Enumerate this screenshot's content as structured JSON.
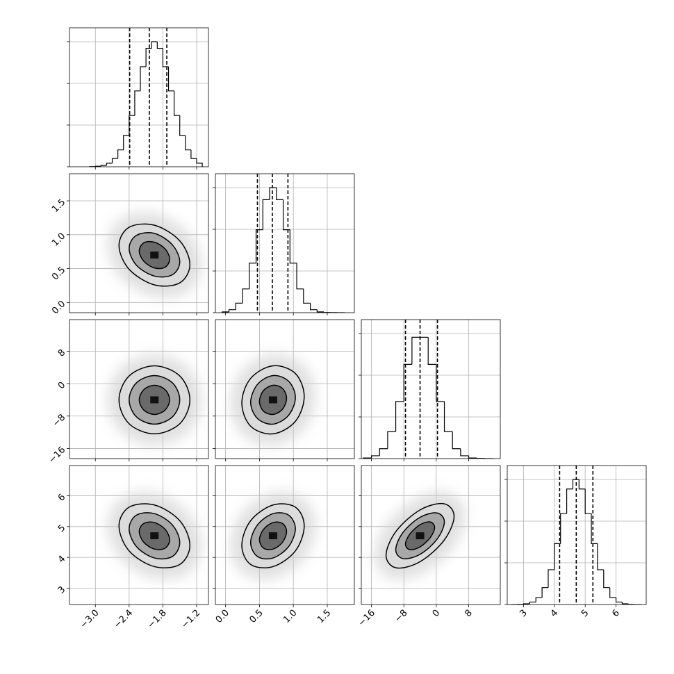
{
  "chart_data": {
    "type": "corner",
    "grid": true,
    "color": "#000000",
    "axes": [
      {
        "lim": [
          -3.46,
          -0.99
        ],
        "ticks": [
          {
            "value": -3.0,
            "label": "−3.0"
          },
          {
            "value": -2.4,
            "label": "−2.4"
          },
          {
            "value": -1.8,
            "label": "−1.8"
          },
          {
            "value": -1.2,
            "label": "−1.2"
          }
        ]
      },
      {
        "lim": [
          -0.15,
          1.9
        ],
        "ticks": [
          {
            "value": 0.0,
            "label": "0.0"
          },
          0.5,
          {
            "value": 1.0,
            "label": "1.0"
          },
          1.5
        ]
      },
      {
        "lim": [
          -18.5,
          15.8
        ],
        "ticks": [
          {
            "value": -16,
            "label": "−16"
          },
          {
            "value": -8,
            "label": "−8"
          },
          0,
          8
        ]
      },
      {
        "lim": [
          2.47,
          6.98
        ],
        "ticks": [
          3,
          4,
          5,
          6
        ]
      }
    ],
    "histograms": [
      {
        "bins": [
          -3.1,
          -3.0,
          -2.9,
          -2.8,
          -2.7,
          -2.6,
          -2.5,
          -2.4,
          -2.3,
          -2.2,
          -2.1,
          -2.0,
          -1.9,
          -1.8,
          -1.7,
          -1.6,
          -1.5,
          -1.4,
          -1.3,
          -1.2,
          -1.1
        ],
        "values": [
          4,
          12,
          33,
          85,
          198,
          405,
          750,
          1230,
          1820,
          2400,
          2840,
          3000,
          2840,
          2400,
          1820,
          1230,
          750,
          405,
          198,
          85
        ],
        "quantiles": [
          -2.39,
          -2.04,
          -1.73
        ],
        "ylim": [
          0,
          3333
        ],
        "yticks": [
          0,
          1000,
          2000,
          3000
        ]
      },
      {
        "bins": [
          -0.05,
          0.05,
          0.15,
          0.25,
          0.35,
          0.45,
          0.55,
          0.65,
          0.75,
          0.85,
          0.95,
          1.05,
          1.15,
          1.25,
          1.35,
          1.45,
          1.55,
          1.65,
          1.75
        ],
        "values": [
          19,
          72,
          228,
          570,
          1190,
          1990,
          2710,
          3000,
          2710,
          1990,
          1190,
          570,
          228,
          72,
          19,
          5,
          2,
          1
        ],
        "quantiles": [
          0.47,
          0.69,
          0.92
        ],
        "ylim": [
          0,
          3333
        ],
        "yticks": [
          0,
          1000,
          2000,
          3000
        ]
      },
      {
        "bins": [
          -18,
          -16,
          -14,
          -12,
          -10,
          -8,
          -6,
          -4,
          -2,
          0,
          2,
          4,
          6,
          8,
          10,
          12,
          14
        ],
        "values": [
          15,
          68,
          238,
          648,
          1370,
          2260,
          2910,
          2910,
          2260,
          1370,
          648,
          238,
          68,
          15,
          5,
          1
        ],
        "quantiles": [
          -7.6,
          -4.0,
          0.3
        ],
        "ylim": [
          0,
          3333
        ],
        "yticks": [
          0,
          1000,
          2000,
          3000
        ]
      },
      {
        "bins": [
          2.6,
          2.8,
          3.0,
          3.2,
          3.4,
          3.6,
          3.8,
          4.0,
          4.2,
          4.4,
          4.6,
          4.8,
          5.0,
          5.2,
          5.4,
          5.6,
          5.8,
          6.0,
          6.2,
          6.4,
          6.6,
          6.8
        ],
        "values": [
          1,
          5,
          18,
          59,
          168,
          405,
          834,
          1460,
          2180,
          2770,
          3000,
          2770,
          2180,
          1460,
          834,
          405,
          168,
          59,
          18,
          5,
          1
        ],
        "quantiles": [
          4.17,
          4.71,
          5.25
        ],
        "ylim": [
          0,
          3333
        ],
        "yticks": [
          0,
          1000,
          2000,
          3000
        ]
      }
    ],
    "panels": [
      [
        {
          "contours": [
            {
              "x": [
                -1.32,
                -1.5,
                -1.95,
                -2.4,
                -2.58,
                -2.4,
                -1.95,
                -1.5
              ],
              "y": [
                0.56,
                0.91,
                1.14,
                1.11,
                0.84,
                0.49,
                0.26,
                0.29
              ]
            },
            {
              "x": [
                -1.5,
                -1.63,
                -1.95,
                -2.27,
                -2.4,
                -2.27,
                -1.95,
                -1.63
              ],
              "y": [
                0.6,
                0.85,
                1.02,
                0.99,
                0.8,
                0.55,
                0.39,
                0.41
              ]
            },
            {
              "x": [
                -1.68,
                -1.76,
                -1.95,
                -2.14,
                -2.22,
                -2.14,
                -1.95,
                -1.76
              ],
              "y": [
                0.64,
                0.79,
                0.89,
                0.88,
                0.76,
                0.61,
                0.51,
                0.52
              ]
            }
          ]
        }
      ],
      [
        {
          "contours": [
            {
              "x": [
                -1.32,
                -1.5,
                -1.95,
                -2.4,
                -2.58,
                -2.4,
                -1.95,
                -1.5
              ],
              "y": [
                -4,
                1.9,
                4.4,
                1.9,
                -4,
                -9.9,
                -12.4,
                -9.9
              ]
            },
            {
              "x": [
                -1.5,
                -1.63,
                -1.95,
                -2.27,
                -2.4,
                -2.27,
                -1.95,
                -1.63
              ],
              "y": [
                -4,
                0.2,
                2,
                0.2,
                -4,
                -8.2,
                -10,
                -8.2
              ]
            },
            {
              "x": [
                -1.68,
                -1.76,
                -1.95,
                -2.14,
                -2.22,
                -2.14,
                -1.95,
                -1.76
              ],
              "y": [
                -4,
                -1.5,
                -0.4,
                -1.5,
                -4,
                -6.5,
                -7.6,
                -6.5
              ]
            }
          ]
        },
        {
          "contours": [
            {
              "x": [
                1.16,
                1.03,
                0.7,
                0.37,
                0.24,
                0.37,
                0.7,
                1.03
              ],
              "y": [
                -3.2,
                2.5,
                4.4,
                1.3,
                -4.8,
                -10.5,
                -12.4,
                -9.3
              ]
            },
            {
              "x": [
                1.03,
                0.93,
                0.7,
                0.47,
                0.37,
                0.47,
                0.7,
                0.93
              ],
              "y": [
                -3.4,
                0.6,
                2.0,
                -0.2,
                -4.6,
                -8.6,
                -10.0,
                -7.8
              ]
            },
            {
              "x": [
                0.9,
                0.84,
                0.7,
                0.56,
                0.5,
                0.56,
                0.7,
                0.84
              ],
              "y": [
                -3.6,
                -1.2,
                -0.4,
                -1.7,
                -4.4,
                -6.8,
                -7.6,
                -6.3
              ]
            }
          ]
        }
      ],
      [
        {
          "contours": [
            {
              "x": [
                -1.32,
                -1.5,
                -1.95,
                -2.4,
                -2.58,
                -2.4,
                -1.95,
                -1.5
              ],
              "y": [
                4.39,
                5.19,
                5.7,
                5.63,
                5.02,
                4.21,
                3.7,
                3.77
              ]
            },
            {
              "x": [
                -1.5,
                -1.63,
                -1.95,
                -2.27,
                -2.4,
                -2.27,
                -1.95,
                -1.63
              ],
              "y": [
                4.48,
                5.05,
                5.42,
                5.37,
                4.93,
                4.35,
                3.98,
                4.03
              ]
            },
            {
              "x": [
                -1.68,
                -1.76,
                -1.95,
                -2.14,
                -2.22,
                -2.14,
                -1.95,
                -1.76
              ],
              "y": [
                4.57,
                4.91,
                5.13,
                5.1,
                4.84,
                4.49,
                4.27,
                4.3
              ]
            }
          ]
        },
        {
          "contours": [
            {
              "x": [
                1.16,
                1.03,
                0.7,
                0.37,
                0.24,
                0.37,
                0.7,
                1.03
              ],
              "y": [
                5.02,
                5.63,
                5.7,
                5.19,
                4.39,
                3.77,
                3.7,
                4.21
              ]
            },
            {
              "x": [
                1.03,
                0.93,
                0.7,
                0.47,
                0.37,
                0.47,
                0.7,
                0.93
              ],
              "y": [
                4.93,
                5.37,
                5.42,
                5.05,
                4.48,
                4.03,
                3.98,
                4.35
              ]
            },
            {
              "x": [
                0.9,
                0.84,
                0.7,
                0.56,
                0.5,
                0.56,
                0.7,
                0.84
              ],
              "y": [
                4.84,
                5.1,
                5.13,
                4.91,
                4.57,
                4.3,
                4.27,
                4.49
              ]
            }
          ]
        },
        {
          "contours": [
            {
              "x": [
                4.4,
                1.9,
                -4,
                -9.9,
                -12.4,
                -9.9,
                -4,
                1.9
              ],
              "y": [
                5.33,
                5.74,
                5.54,
                4.85,
                4.07,
                3.66,
                3.86,
                4.55
              ]
            },
            {
              "x": [
                2,
                0.2,
                -4,
                -8.2,
                -10,
                -8.2,
                -4,
                0.2
              ],
              "y": [
                5.15,
                5.44,
                5.3,
                4.81,
                4.25,
                3.96,
                4.1,
                4.59
              ]
            },
            {
              "x": [
                -0.4,
                -1.5,
                -4,
                -6.5,
                -7.6,
                -6.5,
                -4,
                -1.5
              ],
              "y": [
                4.97,
                5.15,
                5.06,
                4.76,
                4.43,
                4.25,
                4.34,
                4.64
              ]
            }
          ]
        }
      ]
    ]
  }
}
